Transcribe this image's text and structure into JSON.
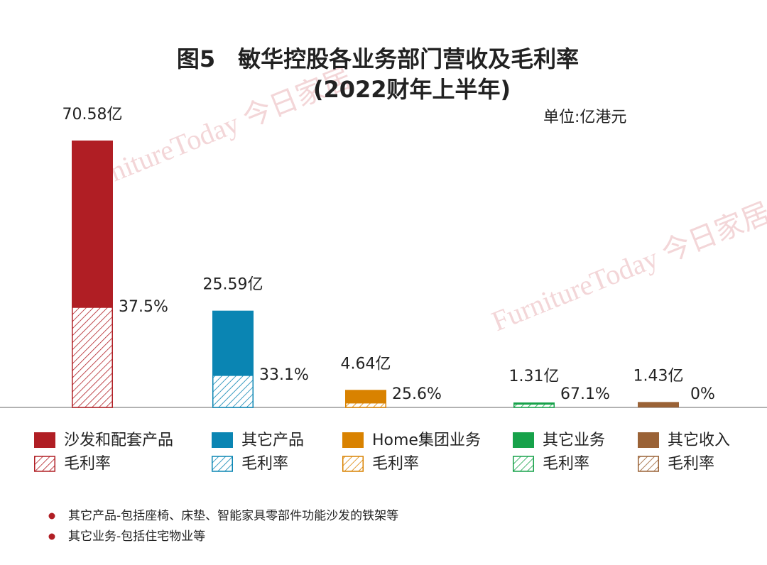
{
  "chart_data": {
    "type": "bar",
    "title": "图5　敏华控股各业务部门营收及毛利率",
    "subtitle": "(2022财年上半年)",
    "unit": "单位:亿港元",
    "watermark": "FurnitureToday 今日家居",
    "categories": [
      "沙发和配套产品",
      "其它产品",
      "Home集团业务",
      "其它业务",
      "其它收入"
    ],
    "colors": [
      "#b01e24",
      "#0a85b3",
      "#d98200",
      "#17a24a",
      "#9a6236"
    ],
    "values": [
      70.58,
      25.59,
      4.64,
      1.31,
      1.43
    ],
    "value_labels": [
      "70.58亿",
      "25.59亿",
      "4.64亿",
      "1.31亿",
      "1.43亿"
    ],
    "margin_name": "毛利率",
    "margins": [
      37.5,
      33.1,
      25.6,
      67.1,
      0
    ],
    "margin_labels": [
      "37.5%",
      "33.1%",
      "25.6%",
      "67.1%",
      "0%"
    ],
    "notes": [
      "其它产品-包括座椅、床垫、智能家具零部件功能沙发的铁架等",
      "其它业务-包括住宅物业等"
    ]
  }
}
